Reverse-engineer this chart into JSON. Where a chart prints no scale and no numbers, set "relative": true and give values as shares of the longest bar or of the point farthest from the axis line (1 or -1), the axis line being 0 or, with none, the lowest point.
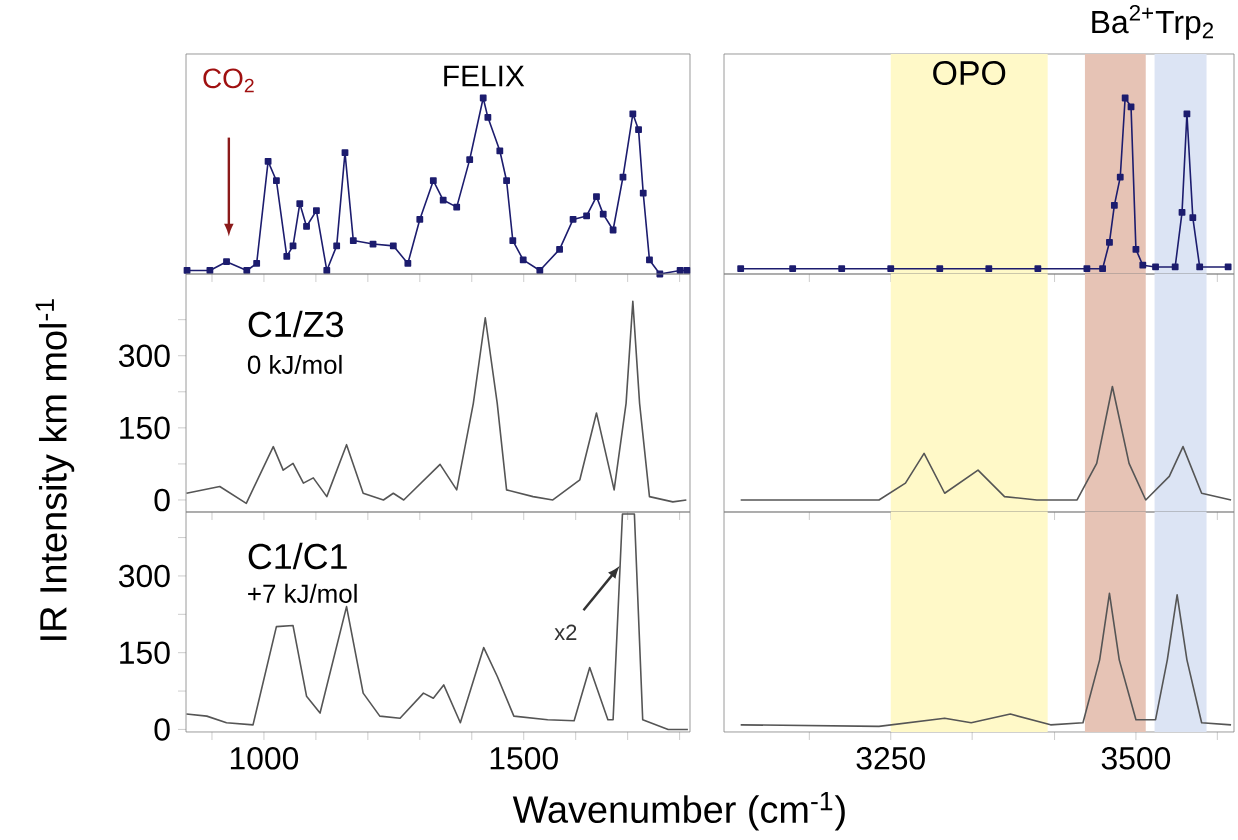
{
  "chart_data": [
    {
      "type": "line",
      "relative": true,
      "xlim": [
        850,
        1820
      ],
      "xticks": [
        {
          "value": 900,
          "label": null
        },
        1000,
        {
          "value": 1100,
          "label": null
        },
        {
          "value": 1200,
          "label": null
        },
        {
          "value": 1300,
          "label": null
        },
        {
          "value": 1400,
          "label": null
        },
        1500,
        {
          "value": 1600,
          "label": null
        },
        {
          "value": 1700,
          "label": null
        },
        {
          "value": 1800,
          "label": null
        }
      ],
      "tick_labels": false,
      "marker": "square",
      "annotations": [
        "CO$_{2}$",
        "FELIX"
      ],
      "x": [
        852,
        896,
        928,
        967,
        986,
        1008,
        1024,
        1044,
        1056,
        1069,
        1082,
        1101,
        1121,
        1140,
        1156,
        1172,
        1210,
        1249,
        1277,
        1300,
        1326,
        1345,
        1371,
        1396,
        1422,
        1431,
        1454,
        1467,
        1479,
        1499,
        1531,
        1569,
        1595,
        1621,
        1640,
        1653,
        1672,
        1691,
        1710,
        1721,
        1730,
        1742,
        1762,
        1801,
        1814
      ],
      "series": [
        {
          "color": "#1c1c6e",
          "values": [
            0.02,
            0.02,
            0.07,
            0.02,
            0.06,
            0.64,
            0.53,
            0.1,
            0.16,
            0.4,
            0.27,
            0.36,
            0.02,
            0.16,
            0.69,
            0.19,
            0.17,
            0.16,
            0.06,
            0.31,
            0.53,
            0.42,
            0.38,
            0.65,
            1,
            0.89,
            0.7,
            0.53,
            0.19,
            0.08,
            0.02,
            0.14,
            0.31,
            0.33,
            0.44,
            0.34,
            0.25,
            0.55,
            0.91,
            0.82,
            0.46,
            0.08,
            0,
            0.02,
            0.02
          ]
        }
      ]
    },
    {
      "type": "line",
      "relative": true,
      "title": "Ba$^{2+}$Trp$_{2}$",
      "xlim": [
        3080,
        3600
      ],
      "xticks": [
        {
          "value": 3167,
          "label": null
        },
        3250,
        {
          "value": 3333,
          "label": null
        },
        {
          "value": 3417,
          "label": null
        },
        3500,
        {
          "value": 3583,
          "label": null
        }
      ],
      "tick_labels": false,
      "marker": "square",
      "bands": [
        {
          "axis": "x",
          "from": 3250,
          "to": 3410,
          "color": "#fff9c8",
          "label": "OPO"
        },
        {
          "axis": "x",
          "from": 3448,
          "to": 3510,
          "color": "#e6c3b5"
        },
        {
          "axis": "x",
          "from": 3519,
          "to": 3572,
          "color": "#dce4f4"
        }
      ],
      "x": [
        3097,
        3150,
        3200,
        3250,
        3300,
        3350,
        3400,
        3450,
        3466,
        3473,
        3478,
        3484,
        3489,
        3495,
        3500,
        3507,
        3520,
        3540,
        3547,
        3552,
        3558,
        3565,
        3594
      ],
      "series": [
        {
          "color": "#1c1c6e",
          "values": [
            0.03,
            0.03,
            0.03,
            0.03,
            0.03,
            0.03,
            0.03,
            0.03,
            0.03,
            0.18,
            0.39,
            0.55,
            1,
            0.95,
            0.14,
            0.05,
            0.04,
            0.04,
            0.35,
            0.91,
            0.32,
            0.04,
            0.04
          ]
        }
      ]
    },
    {
      "type": "line",
      "xlim": [
        850,
        1820
      ],
      "xticks": [
        {
          "value": 900,
          "label": null
        },
        1000,
        {
          "value": 1100,
          "label": null
        },
        {
          "value": 1200,
          "label": null
        },
        {
          "value": 1300,
          "label": null
        },
        {
          "value": 1400,
          "label": null
        },
        1500,
        {
          "value": 1600,
          "label": null
        },
        {
          "value": 1700,
          "label": null
        },
        {
          "value": 1800,
          "label": null
        }
      ],
      "ylim": [
        -25,
        470
      ],
      "yticks": [
        0,
        {
          "value": 75,
          "label": null
        },
        150,
        {
          "value": 225,
          "label": null
        },
        300,
        {
          "value": 375,
          "label": null
        }
      ],
      "tick_labels": "y",
      "annotations": [
        "C1/Z3",
        "0 kJ/mol"
      ],
      "x": [
        851,
        915,
        966,
        1018,
        1037,
        1056,
        1076,
        1095,
        1121,
        1159,
        1191,
        1230,
        1249,
        1269,
        1339,
        1371,
        1403,
        1426,
        1449,
        1467,
        1518,
        1556,
        1608,
        1640,
        1674,
        1697,
        1710,
        1723,
        1742,
        1787,
        1813
      ],
      "series": [
        {
          "color": "#555555",
          "values": [
            14,
            28,
            -7,
            111,
            62,
            76,
            35,
            46,
            7,
            115,
            14,
            0,
            14,
            0,
            74,
            21,
            201,
            379,
            201,
            21,
            7,
            0,
            42,
            181,
            21,
            201,
            413,
            201,
            7,
            -4,
            0
          ]
        }
      ]
    },
    {
      "type": "line",
      "xlim": [
        3080,
        3600
      ],
      "xticks": [
        {
          "value": 3167,
          "label": null
        },
        3250,
        {
          "value": 3333,
          "label": null
        },
        {
          "value": 3417,
          "label": null
        },
        3500,
        {
          "value": 3583,
          "label": null
        }
      ],
      "ylim": [
        -25,
        470
      ],
      "tick_labels": false,
      "bands": [
        {
          "axis": "x",
          "from": 3250,
          "to": 3410,
          "color": "#fff9c8"
        },
        {
          "axis": "x",
          "from": 3448,
          "to": 3510,
          "color": "#e6c3b5"
        },
        {
          "axis": "x",
          "from": 3519,
          "to": 3572,
          "color": "#dce4f4"
        }
      ],
      "x": [
        3097,
        3238,
        3265,
        3284,
        3305,
        3339,
        3366,
        3399,
        3440,
        3460,
        3476,
        3493,
        3510,
        3534,
        3548,
        3567,
        3597
      ],
      "series": [
        {
          "color": "#555555",
          "values": [
            0,
            0,
            35,
            97,
            14,
            62,
            7,
            0,
            0,
            76,
            236,
            76,
            0,
            49,
            111,
            14,
            0
          ]
        }
      ]
    },
    {
      "type": "line",
      "xlim": [
        850,
        1820
      ],
      "xticks": [
        {
          "value": 900,
          "label": null
        },
        1000,
        {
          "value": 1100,
          "label": null
        },
        {
          "value": 1200,
          "label": null
        },
        {
          "value": 1300,
          "label": null
        },
        {
          "value": 1400,
          "label": null
        },
        1500,
        {
          "value": 1600,
          "label": null
        },
        {
          "value": 1700,
          "label": null
        },
        {
          "value": 1800,
          "label": null
        }
      ],
      "ylim": [
        -5,
        425
      ],
      "yticks": [
        0,
        {
          "value": 75,
          "label": null
        },
        150,
        {
          "value": 225,
          "label": null
        },
        300,
        {
          "value": 375,
          "label": null
        }
      ],
      "xlabel": "Wavenumber (cm$^{-1}$)",
      "ylabel": "IR Intensity  km mol$^{-1}$",
      "annotations": [
        "C1/C1",
        "+7 kJ/mol",
        {
          "text": "x2",
          "x": 1685,
          "y": 320
        }
      ],
      "x": [
        851,
        890,
        928,
        979,
        1024,
        1056,
        1082,
        1108,
        1159,
        1191,
        1223,
        1262,
        1307,
        1326,
        1346,
        1378,
        1423,
        1449,
        1481,
        1546,
        1597,
        1627,
        1662,
        1672,
        1690,
        1713,
        1729,
        1778,
        1816
      ],
      "series": [
        {
          "color": "#555555",
          "values": [
            30,
            26,
            13,
            9,
            201,
            203,
            65,
            32,
            240,
            71,
            26,
            22,
            71,
            61,
            87,
            13,
            160,
            104,
            26,
            19,
            17,
            121,
            19,
            19,
            421,
            421,
            19,
            0,
            0
          ]
        }
      ]
    },
    {
      "type": "line",
      "xlim": [
        3080,
        3600
      ],
      "xticks": [
        {
          "value": 3167,
          "label": null
        },
        3250,
        {
          "value": 3333,
          "label": null
        },
        {
          "value": 3417,
          "label": null
        },
        3500,
        {
          "value": 3583,
          "label": null
        }
      ],
      "ylim": [
        -5,
        425
      ],
      "tick_labels": "x",
      "bands": [
        {
          "axis": "x",
          "from": 3250,
          "to": 3410,
          "color": "#fff9c8"
        },
        {
          "axis": "x",
          "from": 3448,
          "to": 3510,
          "color": "#e6c3b5"
        },
        {
          "axis": "x",
          "from": 3519,
          "to": 3572,
          "color": "#dce4f4"
        }
      ],
      "x": [
        3097,
        3238,
        3305,
        3332,
        3372,
        3413,
        3446,
        3463,
        3473,
        3483,
        3500,
        3520,
        3532,
        3542,
        3552,
        3567,
        3597
      ],
      "series": [
        {
          "color": "#555555",
          "values": [
            9,
            6,
            22,
            13,
            30,
            9,
            13,
            136,
            266,
            136,
            19,
            19,
            136,
            263,
            136,
            13,
            9
          ]
        }
      ]
    }
  ]
}
